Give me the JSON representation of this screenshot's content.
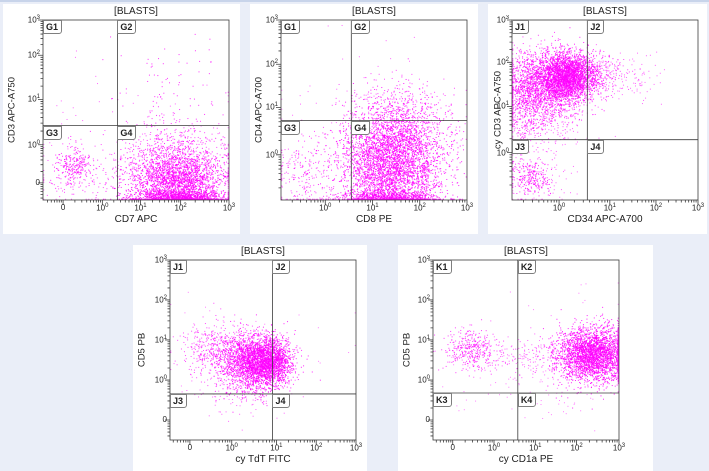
{
  "page": {
    "background": "#eaeef8",
    "top_border_color": "#c8d4ea",
    "panel_color": "#ffffff",
    "frame_color": "#3c3c3c",
    "text_color": "#222222",
    "dot_color": "#ff00ff"
  },
  "populations_units": "axis fractions (0-1) measured from plot bottom-left",
  "chart_data": [
    {
      "type": "scatter",
      "title": "[BLASTS]",
      "xlabel": "CD7 APC",
      "ylabel": "CD3 APC-A750",
      "marker_color": "#ff00ff",
      "x_ticks": [
        {
          "label": "0",
          "f": 0.108
        },
        {
          "label": "10^0",
          "f": 0.319
        },
        {
          "label": "10^1",
          "f": 0.524
        },
        {
          "label": "10^2",
          "f": 0.74
        },
        {
          "label": "10^3",
          "f": 1.0
        }
      ],
      "y_ticks": [
        {
          "label": "0",
          "f": 0.095
        },
        {
          "label": "10^0",
          "f": 0.307
        },
        {
          "label": "10^1",
          "f": 0.559
        },
        {
          "label": "10^2",
          "f": 0.804
        },
        {
          "label": "10^3",
          "f": 1.0
        }
      ],
      "quadrant_labels": {
        "top_left": "G1",
        "top_right": "G2",
        "bottom_left": "G3",
        "bottom_right": "G4"
      },
      "quadrant_divider": {
        "x": 0.4,
        "y": 0.413
      },
      "populations": [
        {
          "cx": 0.72,
          "cy": 0.1,
          "sx": 0.13,
          "sy": 0.095,
          "n": 2600,
          "alpha": 0.85
        },
        {
          "cx": 0.7,
          "cy": 0.24,
          "sx": 0.14,
          "sy": 0.09,
          "n": 550,
          "alpha": 0.7
        },
        {
          "cx": 0.73,
          "cy": 0.015,
          "sx": 0.12,
          "sy": 0.02,
          "n": 900,
          "alpha": 0.85
        },
        {
          "cx": 0.67,
          "cy": 0.52,
          "sx": 0.17,
          "sy": 0.16,
          "n": 120,
          "alpha": 0.8
        },
        {
          "cx": 0.17,
          "cy": 0.185,
          "sx": 0.055,
          "sy": 0.055,
          "n": 260,
          "alpha": 0.8
        },
        {
          "cx": 0.22,
          "cy": 0.12,
          "sx": 0.13,
          "sy": 0.09,
          "n": 110,
          "alpha": 0.7
        },
        {
          "cx": 0.5,
          "cy": 0.35,
          "sx": 0.3,
          "sy": 0.2,
          "n": 60,
          "alpha": 0.6
        }
      ]
    },
    {
      "type": "scatter",
      "title": "[BLASTS]",
      "xlabel": "CD8 PE",
      "ylabel": "CD4 APC-A700",
      "marker_color": "#ff00ff",
      "x_ticks": [
        {
          "label": "10^0",
          "f": 0.238
        },
        {
          "label": "10^1",
          "f": 0.492
        },
        {
          "label": "10^2",
          "f": 0.746
        },
        {
          "label": "10^3",
          "f": 1.0
        }
      ],
      "y_ticks": [
        {
          "label": "10^0",
          "f": 0.251
        },
        {
          "label": "10^1",
          "f": 0.514
        },
        {
          "label": "10^2",
          "f": 0.754
        },
        {
          "label": "10^3",
          "f": 1.0
        }
      ],
      "quadrant_labels": {
        "top_left": "G1",
        "top_right": "G2",
        "bottom_left": "G3",
        "bottom_right": "G4"
      },
      "quadrant_divider": {
        "x": 0.378,
        "y": 0.441
      },
      "populations": [
        {
          "cx": 0.6,
          "cy": 0.21,
          "sx": 0.135,
          "sy": 0.15,
          "n": 4200,
          "alpha": 0.85
        },
        {
          "cx": 0.64,
          "cy": 0.47,
          "sx": 0.14,
          "sy": 0.1,
          "n": 420,
          "alpha": 0.7
        },
        {
          "cx": 0.58,
          "cy": 0.015,
          "sx": 0.13,
          "sy": 0.02,
          "n": 700,
          "alpha": 0.85
        },
        {
          "cx": 0.14,
          "cy": 0.13,
          "sx": 0.1,
          "sy": 0.1,
          "n": 240,
          "alpha": 0.7
        },
        {
          "cx": 0.35,
          "cy": 0.45,
          "sx": 0.25,
          "sy": 0.25,
          "n": 70,
          "alpha": 0.6
        }
      ]
    },
    {
      "type": "scatter",
      "title": "[BLASTS]",
      "xlabel": "CD34 APC-A700",
      "ylabel": "cy CD3 APC-A750",
      "marker_color": "#ff00ff",
      "x_ticks": [
        {
          "label": "10^0",
          "f": 0.253
        },
        {
          "label": "10^1",
          "f": 0.526
        },
        {
          "label": "10^2",
          "f": 0.774
        },
        {
          "label": "10^3",
          "f": 1.0
        }
      ],
      "y_ticks": [
        {
          "label": "10^0",
          "f": 0.263
        },
        {
          "label": "10^1",
          "f": 0.52
        },
        {
          "label": "10^2",
          "f": 0.765
        },
        {
          "label": "10^3",
          "f": 1.0
        }
      ],
      "quadrant_labels": {
        "top_left": "J1",
        "top_right": "J2",
        "bottom_left": "J3",
        "bottom_right": "J4"
      },
      "quadrant_divider": {
        "x": 0.405,
        "y": 0.335
      },
      "populations": [
        {
          "cx": 0.3,
          "cy": 0.69,
          "sx": 0.075,
          "sy": 0.065,
          "n": 2500,
          "alpha": 0.85
        },
        {
          "cx": 0.19,
          "cy": 0.63,
          "sx": 0.1,
          "sy": 0.1,
          "n": 1700,
          "alpha": 0.75
        },
        {
          "cx": 0.06,
          "cy": 0.57,
          "sx": 0.05,
          "sy": 0.13,
          "n": 600,
          "alpha": 0.75
        },
        {
          "cx": 0.47,
          "cy": 0.69,
          "sx": 0.07,
          "sy": 0.055,
          "n": 260,
          "alpha": 0.7
        },
        {
          "cx": 0.62,
          "cy": 0.67,
          "sx": 0.1,
          "sy": 0.07,
          "n": 90,
          "alpha": 0.6
        },
        {
          "cx": 0.18,
          "cy": 0.42,
          "sx": 0.12,
          "sy": 0.1,
          "n": 200,
          "alpha": 0.6
        },
        {
          "cx": 0.1,
          "cy": 0.125,
          "sx": 0.05,
          "sy": 0.055,
          "n": 240,
          "alpha": 0.8
        },
        {
          "cx": 0.15,
          "cy": 0.1,
          "sx": 0.1,
          "sy": 0.07,
          "n": 90,
          "alpha": 0.6
        }
      ]
    },
    {
      "type": "scatter",
      "title": "[BLASTS]",
      "xlabel": "cy TdT FITC",
      "ylabel": "CD5 PB",
      "marker_color": "#ff00ff",
      "x_ticks": [
        {
          "label": "0",
          "f": 0.107
        },
        {
          "label": "10^0",
          "f": 0.332
        },
        {
          "label": "10^1",
          "f": 0.572
        },
        {
          "label": "10^2",
          "f": 0.786
        },
        {
          "label": "10^3",
          "f": 1.0
        }
      ],
      "y_ticks": [
        {
          "label": "0",
          "f": 0.111
        },
        {
          "label": "10^0",
          "f": 0.333
        },
        {
          "label": "10^1",
          "f": 0.556
        },
        {
          "label": "10^2",
          "f": 0.778
        },
        {
          "label": "10^3",
          "f": 1.0
        }
      ],
      "quadrant_labels": {
        "top_left": "J1",
        "top_right": "J2",
        "bottom_left": "J3",
        "bottom_right": "J4"
      },
      "quadrant_divider": {
        "x": 0.551,
        "y": 0.256
      },
      "populations": [
        {
          "cx": 0.47,
          "cy": 0.43,
          "sx": 0.085,
          "sy": 0.075,
          "n": 2800,
          "alpha": 0.85
        },
        {
          "cx": 0.565,
          "cy": 0.445,
          "sx": 0.045,
          "sy": 0.06,
          "n": 600,
          "alpha": 0.8
        },
        {
          "cx": 0.27,
          "cy": 0.5,
          "sx": 0.095,
          "sy": 0.075,
          "n": 520,
          "alpha": 0.7
        },
        {
          "cx": 0.4,
          "cy": 0.3,
          "sx": 0.14,
          "sy": 0.09,
          "n": 150,
          "alpha": 0.6
        },
        {
          "cx": 0.5,
          "cy": 0.5,
          "sx": 0.25,
          "sy": 0.15,
          "n": 50,
          "alpha": 0.5
        }
      ]
    },
    {
      "type": "scatter",
      "title": "[BLASTS]",
      "xlabel": "cy CD1a PE",
      "ylabel": "CD5 PB",
      "marker_color": "#ff00ff",
      "x_ticks": [
        {
          "label": "0",
          "f": 0.106
        },
        {
          "label": "10^0",
          "f": 0.328
        },
        {
          "label": "10^1",
          "f": 0.55
        },
        {
          "label": "10^2",
          "f": 0.772
        },
        {
          "label": "10^3",
          "f": 1.0
        }
      ],
      "y_ticks": [
        {
          "label": "0",
          "f": 0.111
        },
        {
          "label": "10^0",
          "f": 0.333
        },
        {
          "label": "10^1",
          "f": 0.556
        },
        {
          "label": "10^2",
          "f": 0.778
        },
        {
          "label": "10^3",
          "f": 1.0
        }
      ],
      "quadrant_labels": {
        "top_left": "K1",
        "top_right": "K2",
        "bottom_left": "K3",
        "bottom_right": "K4"
      },
      "quadrant_divider": {
        "x": 0.456,
        "y": 0.261
      },
      "populations": [
        {
          "cx": 0.865,
          "cy": 0.475,
          "sx": 0.1,
          "sy": 0.075,
          "n": 3000,
          "alpha": 0.85
        },
        {
          "cx": 0.21,
          "cy": 0.5,
          "sx": 0.07,
          "sy": 0.06,
          "n": 360,
          "alpha": 0.75
        },
        {
          "cx": 0.55,
          "cy": 0.46,
          "sx": 0.17,
          "sy": 0.055,
          "n": 200,
          "alpha": 0.6
        },
        {
          "cx": 0.6,
          "cy": 0.3,
          "sx": 0.2,
          "sy": 0.1,
          "n": 80,
          "alpha": 0.5
        },
        {
          "cx": 0.5,
          "cy": 0.6,
          "sx": 0.25,
          "sy": 0.15,
          "n": 40,
          "alpha": 0.5
        }
      ]
    }
  ]
}
